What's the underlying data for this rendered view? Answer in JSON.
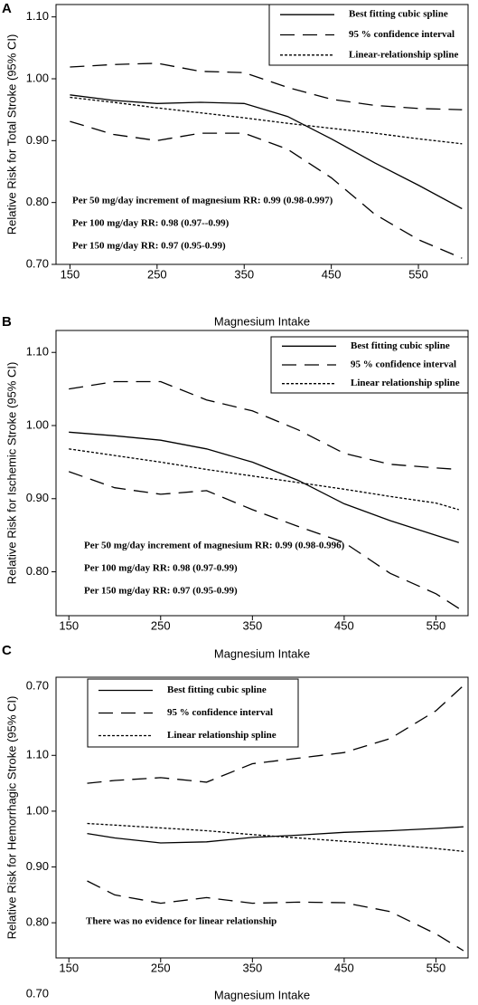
{
  "chart_data": [
    {
      "type": "line",
      "title": "A",
      "xlabel": "Magnesium Intake",
      "ylabel": "Relative Risk for Total Stroke (95% CI)",
      "x": [
        150,
        200,
        250,
        300,
        350,
        400,
        450,
        500,
        550,
        600
      ],
      "series": [
        {
          "name": "Best fitting cubic spline",
          "dash": "solid",
          "color": "#000000",
          "values": [
            0.974,
            0.965,
            0.96,
            0.962,
            0.96,
            0.939,
            0.903,
            0.864,
            0.828,
            0.79
          ]
        },
        {
          "name": "95 % confidence interval",
          "dash": "long",
          "color": "#000000",
          "values": [
            1.019,
            1.023,
            1.025,
            1.012,
            1.01,
            0.986,
            0.967,
            0.957,
            0.952,
            0.95
          ],
          "lower": [
            0.931,
            0.91,
            0.9,
            0.912,
            0.912,
            0.886,
            0.84,
            0.781,
            0.74,
            0.71
          ]
        },
        {
          "name": "Linear-relationship spline",
          "dash": "short",
          "color": "#000000",
          "values": [
            0.97,
            0.962,
            0.953,
            0.945,
            0.937,
            0.928,
            0.92,
            0.912,
            0.903,
            0.895
          ]
        }
      ],
      "annotations": [
        "Per 50 mg/day increment of magnesium  RR: 0.99 (0.98-0.997)",
        "Per 100 mg/day RR: 0.98 (0.97--0.99)",
        "Per 150 mg/day RR: 0.97 (0.95-0.99)"
      ],
      "xlim": [
        134,
        607
      ],
      "xticks": [
        150,
        250,
        350,
        450,
        550
      ],
      "ylim": [
        0.7,
        1.12
      ],
      "yticks": [
        {
          "value": 0.7,
          "label": "0.70"
        },
        {
          "value": 0.8,
          "label": "0.80"
        },
        {
          "value": 0.9,
          "label": "0.90"
        },
        {
          "value": 1.0,
          "label": "1.00"
        },
        {
          "value": 1.1,
          "label": "1.10"
        }
      ]
    },
    {
      "type": "line",
      "title": "B",
      "xlabel": "Magnesium Intake",
      "ylabel": "Relative Risk for Ischemic Stroke (95% CI)",
      "x": [
        150,
        200,
        250,
        300,
        350,
        400,
        450,
        500,
        550,
        575
      ],
      "series": [
        {
          "name": "Best fitting cubic spline",
          "dash": "solid",
          "color": "#000000",
          "values": [
            0.991,
            0.986,
            0.98,
            0.968,
            0.95,
            0.925,
            0.893,
            0.87,
            0.85,
            0.84
          ]
        },
        {
          "name": "95 % confidence interval",
          "dash": "long",
          "color": "#000000",
          "values": [
            1.05,
            1.06,
            1.06,
            1.035,
            1.02,
            0.994,
            0.962,
            0.947,
            0.942,
            0.94
          ],
          "lower": [
            0.937,
            0.915,
            0.906,
            0.911,
            0.885,
            0.862,
            0.84,
            0.798,
            0.77,
            0.75
          ]
        },
        {
          "name": "Linear relationship spline",
          "dash": "short",
          "color": "#000000",
          "values": [
            0.968,
            0.959,
            0.95,
            0.94,
            0.931,
            0.922,
            0.913,
            0.903,
            0.894,
            0.885
          ]
        }
      ],
      "annotations": [
        "Per 50 mg/day increment of magnesium RR: 0.99 (0.98-0.996)",
        "Per 100 mg/day RR: 0.98 (0.97-0.99)",
        "Per 150 mg/day RR: 0.97 (0.95-0.99)"
      ],
      "xlim": [
        136,
        585
      ],
      "xticks": [
        150,
        250,
        350,
        450,
        550
      ],
      "ylim": [
        0.74,
        1.13
      ],
      "yticks": [
        {
          "value": 0.8,
          "label": "0.80"
        },
        {
          "value": 0.9,
          "label": "0.90"
        },
        {
          "value": 1.0,
          "label": "1.00"
        },
        {
          "value": 1.1,
          "label": "1.10"
        }
      ]
    },
    {
      "type": "line",
      "title": "C",
      "xlabel": "Magnesium Intake",
      "ylabel": "Relative Risk for Hemorrhagic Stroke (95% CI)",
      "x": [
        170,
        200,
        250,
        300,
        350,
        400,
        450,
        500,
        550,
        580
      ],
      "series": [
        {
          "name": "Best fitting cubic spline",
          "dash": "solid",
          "color": "#000000",
          "values": [
            0.96,
            0.952,
            0.943,
            0.945,
            0.953,
            0.957,
            0.962,
            0.965,
            0.969,
            0.972
          ]
        },
        {
          "name": "95 % confidence  interval",
          "dash": "long",
          "color": "#000000",
          "values": [
            1.05,
            1.055,
            1.06,
            1.052,
            1.085,
            1.095,
            1.105,
            1.13,
            1.18,
            1.225
          ],
          "lower": [
            0.875,
            0.85,
            0.835,
            0.845,
            0.835,
            0.837,
            0.836,
            0.82,
            0.78,
            0.75
          ]
        },
        {
          "name": "Linear relationship spline",
          "dash": "short",
          "color": "#000000",
          "values": [
            0.978,
            0.975,
            0.97,
            0.965,
            0.958,
            0.952,
            0.946,
            0.94,
            0.933,
            0.928
          ]
        }
      ],
      "annotations": [
        "There was no evidence for linear relationship"
      ],
      "extra_ytick_labels": [
        "0.70",
        "0.70"
      ],
      "xlim": [
        136,
        585
      ],
      "xticks": [
        150,
        250,
        350,
        450,
        550
      ],
      "ylim": [
        0.737,
        1.24
      ],
      "yticks": [
        {
          "value": 0.8,
          "label": "0.80"
        },
        {
          "value": 0.9,
          "label": "0.90"
        },
        {
          "value": 1.0,
          "label": "1.00"
        },
        {
          "value": 1.1,
          "label": "1.10"
        }
      ]
    }
  ]
}
